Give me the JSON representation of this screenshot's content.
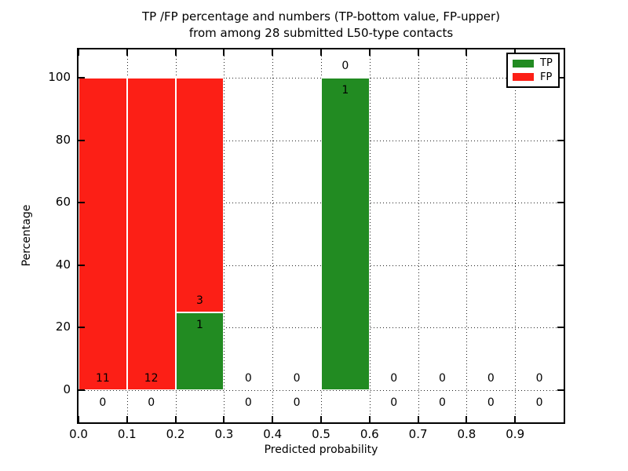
{
  "title": {
    "line1": "TP /FP percentage and numbers (TP-bottom value, FP-upper)",
    "line2": "from among 28 submitted L50-type contacts"
  },
  "axes": {
    "xlabel": "Predicted probability",
    "ylabel": "Percentage",
    "x_tick_labels": [
      "0.0",
      "0.1",
      "0.2",
      "0.3",
      "0.4",
      "0.5",
      "0.6",
      "0.7",
      "0.8",
      "0.9"
    ],
    "x_tick_values": [
      0.0,
      0.1,
      0.2,
      0.3,
      0.4,
      0.5,
      0.6,
      0.7,
      0.8,
      0.9
    ],
    "y_tick_labels": [
      "0",
      "20",
      "40",
      "60",
      "80",
      "100"
    ],
    "y_tick_values": [
      0,
      20,
      40,
      60,
      80,
      100
    ]
  },
  "legend": {
    "items": [
      {
        "label": "TP",
        "color": "#228b22"
      },
      {
        "label": "FP",
        "color": "#fc1f16"
      }
    ]
  },
  "chart_data": {
    "type": "bar",
    "stacked": true,
    "title": "TP /FP percentage and numbers (TP-bottom value, FP-upper) from among 28 submitted L50-type contacts",
    "xlabel": "Predicted probability",
    "ylabel": "Percentage",
    "xlim": [
      0.0,
      1.0
    ],
    "ylim": [
      -11,
      110
    ],
    "grid": "dotted",
    "legend_position": "upper right",
    "bin_width": 0.1,
    "bin_starts": [
      0.0,
      0.1,
      0.2,
      0.3,
      0.4,
      0.5,
      0.6,
      0.7,
      0.8,
      0.9
    ],
    "series": [
      {
        "name": "TP",
        "color": "#228b22",
        "pct": [
          0,
          0,
          25,
          0,
          0,
          100,
          0,
          0,
          0,
          0
        ],
        "counts": [
          0,
          0,
          1,
          0,
          0,
          1,
          0,
          0,
          0,
          0
        ]
      },
      {
        "name": "FP",
        "color": "#fc1f16",
        "pct": [
          100,
          100,
          75,
          0,
          0,
          0,
          0,
          0,
          0,
          0
        ],
        "counts": [
          11,
          12,
          3,
          0,
          0,
          0,
          0,
          0,
          0,
          0
        ]
      }
    ]
  }
}
